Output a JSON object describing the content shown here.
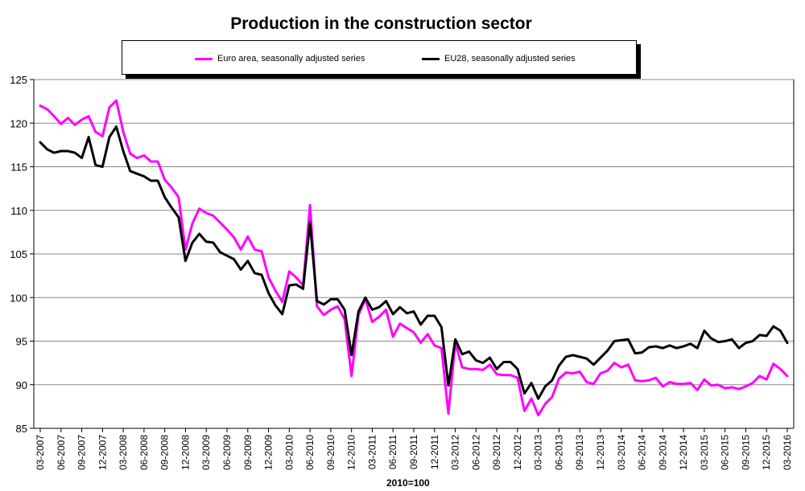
{
  "chart_data": {
    "type": "line",
    "title": "Production in the construction sector",
    "xlabel": "2010=100",
    "ylabel": "",
    "ylim": [
      85,
      125
    ],
    "yticks": [
      85,
      90,
      95,
      100,
      105,
      110,
      115,
      120,
      125
    ],
    "x_start": "03-2007",
    "x_end": "03-2016",
    "x_tick_labels": [
      "03-2007",
      "06-2007",
      "09-2007",
      "12-2007",
      "03-2008",
      "06-2008",
      "09-2008",
      "12-2008",
      "03-2009",
      "06-2009",
      "09-2009",
      "12-2009",
      "03-2010",
      "06-2010",
      "09-2010",
      "12-2010",
      "03-2011",
      "06-2011",
      "09-2011",
      "12-2011",
      "03-2012",
      "06-2012",
      "09-2012",
      "12-2012",
      "03-2013",
      "06-2013",
      "09-2013",
      "12-2013",
      "03-2014",
      "06-2014",
      "09-2014",
      "12-2014",
      "03-2015",
      "06-2015",
      "09-2015",
      "12-2015",
      "03-2016"
    ],
    "grid": "horizontal",
    "legend_position": "top",
    "series": [
      {
        "name": "Euro area, seasonally adjusted series",
        "color": "#ff00ff",
        "values": [
          122.0,
          121.6,
          120.8,
          119.9,
          120.6,
          119.8,
          120.4,
          120.8,
          119.0,
          118.5,
          121.8,
          122.6,
          119.0,
          116.5,
          116.0,
          116.3,
          115.6,
          115.6,
          113.5,
          112.6,
          111.5,
          105.5,
          108.5,
          110.2,
          109.7,
          109.4,
          108.6,
          107.8,
          106.9,
          105.5,
          107.0,
          105.5,
          105.3,
          102.3,
          100.8,
          99.5,
          103.0,
          102.3,
          101.4,
          110.6,
          99.0,
          98.0,
          98.6,
          99.0,
          97.5,
          91.0,
          98.0,
          99.8,
          97.2,
          97.8,
          98.6,
          95.5,
          97.0,
          96.5,
          96.0,
          94.8,
          95.8,
          94.5,
          94.2,
          86.7,
          94.8,
          92.0,
          91.8,
          91.8,
          91.7,
          92.3,
          91.2,
          91.1,
          91.1,
          90.8,
          87.0,
          88.4,
          86.5,
          87.8,
          88.6,
          90.7,
          91.4,
          91.3,
          91.5,
          90.3,
          90.1,
          91.3,
          91.6,
          92.5,
          92.0,
          92.3,
          90.5,
          90.4,
          90.5,
          90.8,
          89.8,
          90.3,
          90.1,
          90.1,
          90.2,
          89.4,
          90.6,
          89.9,
          90.0,
          89.6,
          89.7,
          89.5,
          89.8,
          90.2,
          91.0,
          90.6,
          92.4,
          91.8,
          91.0
        ]
      },
      {
        "name": "EU28, seasonally adjusted series",
        "color": "#000000",
        "values": [
          117.8,
          117.0,
          116.6,
          116.8,
          116.8,
          116.6,
          116.0,
          118.4,
          115.2,
          115.0,
          118.4,
          119.6,
          116.8,
          114.5,
          114.2,
          113.9,
          113.4,
          113.4,
          111.5,
          110.3,
          109.2,
          104.2,
          106.3,
          107.3,
          106.4,
          106.3,
          105.2,
          104.8,
          104.4,
          103.2,
          104.2,
          102.8,
          102.6,
          100.5,
          99.1,
          98.1,
          101.4,
          101.5,
          101.0,
          108.6,
          99.6,
          99.2,
          99.8,
          99.8,
          98.6,
          93.4,
          98.4,
          100.0,
          98.6,
          98.9,
          99.6,
          98.1,
          98.9,
          98.2,
          98.4,
          96.9,
          97.9,
          97.9,
          96.6,
          89.9,
          95.2,
          93.5,
          93.8,
          92.8,
          92.5,
          93.1,
          91.8,
          92.6,
          92.6,
          91.8,
          89.0,
          90.2,
          88.4,
          89.8,
          90.5,
          92.2,
          93.2,
          93.4,
          93.2,
          93.0,
          92.3,
          93.1,
          93.9,
          95.0,
          95.1,
          95.2,
          93.6,
          93.7,
          94.3,
          94.4,
          94.2,
          94.5,
          94.2,
          94.4,
          94.7,
          94.2,
          96.2,
          95.3,
          94.9,
          95.0,
          95.2,
          94.2,
          94.8,
          95.0,
          95.7,
          95.6,
          96.7,
          96.2,
          94.8
        ]
      }
    ]
  }
}
